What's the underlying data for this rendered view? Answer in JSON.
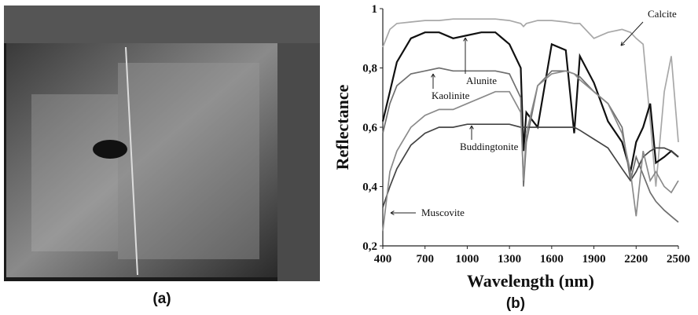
{
  "image_panel": {
    "label": "(a)"
  },
  "chart_data": {
    "type": "line",
    "panel_label": "(b)",
    "x_label": "Wavelength (nm)",
    "y_label": "Reflectance",
    "xlim": [
      400,
      2500
    ],
    "xticks": [
      400,
      700,
      1000,
      1300,
      1600,
      1900,
      2200,
      2500
    ],
    "ylim": [
      0.2,
      1
    ],
    "yticks": [
      {
        "value": 0.2,
        "label": "0,2"
      },
      {
        "value": 0.4,
        "label": "0,4"
      },
      {
        "value": 0.6,
        "label": "0,6"
      },
      {
        "value": 0.8,
        "label": "0,8"
      },
      1
    ],
    "x": [
      400,
      450,
      500,
      600,
      700,
      800,
      900,
      1000,
      1100,
      1200,
      1300,
      1380,
      1400,
      1420,
      1500,
      1600,
      1700,
      1760,
      1800,
      1900,
      2000,
      2100,
      2160,
      2200,
      2250,
      2300,
      2340,
      2400,
      2450,
      2500
    ],
    "series": [
      {
        "name": "Calcite",
        "color": "#a8a8a8",
        "values": [
          0.87,
          0.93,
          0.95,
          0.955,
          0.96,
          0.96,
          0.965,
          0.965,
          0.965,
          0.965,
          0.96,
          0.95,
          0.94,
          0.95,
          0.96,
          0.96,
          0.955,
          0.95,
          0.95,
          0.9,
          0.92,
          0.93,
          0.92,
          0.9,
          0.88,
          0.62,
          0.4,
          0.72,
          0.84,
          0.55
        ]
      },
      {
        "name": "Alunite",
        "color": "#111111",
        "values": [
          0.62,
          0.72,
          0.82,
          0.9,
          0.92,
          0.92,
          0.9,
          0.91,
          0.92,
          0.92,
          0.88,
          0.8,
          0.52,
          0.65,
          0.6,
          0.88,
          0.86,
          0.58,
          0.84,
          0.75,
          0.62,
          0.55,
          0.45,
          0.55,
          0.6,
          0.68,
          0.48,
          0.5,
          0.52,
          0.5
        ]
      },
      {
        "name": "Kaolinite",
        "color": "#6f6f6f",
        "values": [
          0.58,
          0.68,
          0.74,
          0.78,
          0.79,
          0.8,
          0.79,
          0.79,
          0.79,
          0.79,
          0.78,
          0.7,
          0.4,
          0.55,
          0.74,
          0.79,
          0.79,
          0.78,
          0.77,
          0.72,
          0.68,
          0.6,
          0.42,
          0.5,
          0.44,
          0.38,
          0.35,
          0.32,
          0.3,
          0.28
        ]
      },
      {
        "name": "Buddingtonite",
        "color": "#444444",
        "values": [
          0.33,
          0.4,
          0.46,
          0.54,
          0.58,
          0.6,
          0.6,
          0.61,
          0.61,
          0.61,
          0.61,
          0.6,
          0.6,
          0.6,
          0.6,
          0.6,
          0.6,
          0.6,
          0.59,
          0.56,
          0.53,
          0.46,
          0.42,
          0.45,
          0.5,
          0.52,
          0.53,
          0.53,
          0.52,
          0.5
        ]
      },
      {
        "name": "Muscovite",
        "color": "#8a8a8a",
        "values": [
          0.25,
          0.45,
          0.52,
          0.6,
          0.64,
          0.66,
          0.66,
          0.68,
          0.7,
          0.72,
          0.72,
          0.65,
          0.42,
          0.58,
          0.74,
          0.78,
          0.79,
          0.78,
          0.76,
          0.72,
          0.68,
          0.58,
          0.45,
          0.3,
          0.52,
          0.42,
          0.45,
          0.4,
          0.38,
          0.42
        ]
      }
    ]
  }
}
